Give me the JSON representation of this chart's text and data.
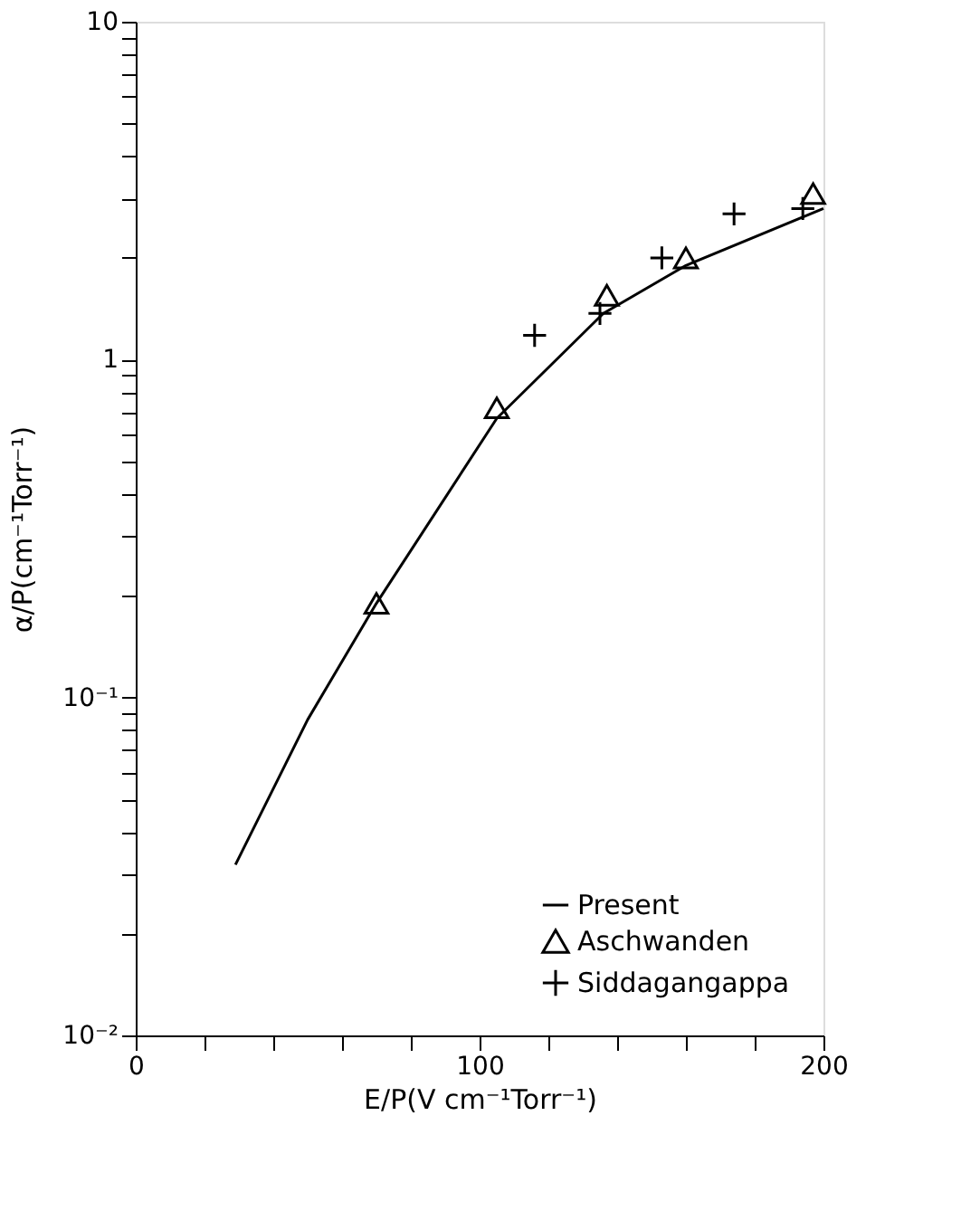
{
  "chart_data": {
    "type": "scatter",
    "xlabel": "E/P(V cm⁻¹Torr⁻¹)",
    "ylabel": "α/P(cm⁻¹Torr⁻¹)",
    "log": "y",
    "xlim": [
      0,
      200
    ],
    "ylim": [
      0.01,
      10
    ],
    "xticks": [
      0,
      {
        "value": 20,
        "label": null
      },
      {
        "value": 40,
        "label": null
      },
      {
        "value": 60,
        "label": null
      },
      {
        "value": 80,
        "label": null
      },
      100,
      {
        "value": 120,
        "label": null
      },
      {
        "value": 140,
        "label": null
      },
      {
        "value": 160,
        "label": null
      },
      {
        "value": 180,
        "label": null
      },
      200
    ],
    "yticks": [
      {
        "value": 0.01,
        "label": "10⁻²"
      },
      {
        "value": 0.02,
        "label": null
      },
      {
        "value": 0.03,
        "label": null
      },
      {
        "value": 0.04,
        "label": null
      },
      {
        "value": 0.05,
        "label": null
      },
      {
        "value": 0.06,
        "label": null
      },
      {
        "value": 0.07,
        "label": null
      },
      {
        "value": 0.08,
        "label": null
      },
      {
        "value": 0.09,
        "label": null
      },
      {
        "value": 0.1,
        "label": "10⁻¹"
      },
      {
        "value": 0.2,
        "label": null
      },
      {
        "value": 0.3,
        "label": null
      },
      {
        "value": 0.4,
        "label": null
      },
      {
        "value": 0.5,
        "label": null
      },
      {
        "value": 0.6,
        "label": null
      },
      {
        "value": 0.7,
        "label": null
      },
      {
        "value": 0.8,
        "label": null
      },
      {
        "value": 0.9,
        "label": null
      },
      1,
      {
        "value": 2,
        "label": null
      },
      {
        "value": 3,
        "label": null
      },
      {
        "value": 4,
        "label": null
      },
      {
        "value": 5,
        "label": null
      },
      {
        "value": 6,
        "label": null
      },
      {
        "value": 7,
        "label": null
      },
      {
        "value": 8,
        "label": null
      },
      {
        "value": 9,
        "label": null
      },
      10
    ],
    "grid": false,
    "legend": "bottom right",
    "series": [
      {
        "name": "Present",
        "type": "line",
        "marker": "none",
        "color": "#000000",
        "x": [
          29,
          50,
          70,
          105,
          136,
          160,
          200
        ],
        "values": [
          0.032,
          0.086,
          0.19,
          0.67,
          1.37,
          1.9,
          2.8
        ]
      },
      {
        "name": "Aschwanden",
        "type": "scatter",
        "marker": "triangle",
        "color": "#000000",
        "x": [
          70,
          105,
          137,
          160,
          197
        ],
        "values": [
          0.19,
          0.72,
          1.55,
          2.0,
          3.1
        ]
      },
      {
        "name": "Siddagangappa",
        "type": "scatter",
        "marker": "cross",
        "color": "#000000",
        "x": [
          116,
          135,
          153,
          174,
          194
        ],
        "values": [
          1.18,
          1.37,
          2.0,
          2.7,
          2.8
        ]
      }
    ]
  }
}
